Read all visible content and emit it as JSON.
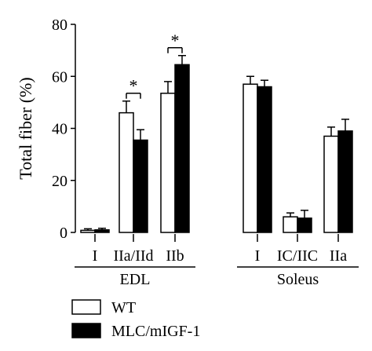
{
  "chart_data": {
    "type": "bar",
    "ylabel": "Total fiber (%)",
    "ylim": [
      0,
      80
    ],
    "yticks": [
      0,
      20,
      40,
      60,
      80
    ],
    "categories": [
      "I",
      "IIa/IId",
      "IIb",
      "I",
      "IC/IIC",
      "IIa"
    ],
    "groups": [
      {
        "label": "EDL",
        "categories": [
          "I",
          "IIa/IId",
          "IIb"
        ]
      },
      {
        "label": "Soleus",
        "categories": [
          "I",
          "IC/IIC",
          "IIa"
        ]
      }
    ],
    "series": [
      {
        "name": "WT",
        "color": "#ffffff",
        "values": [
          0.8,
          46,
          53.5,
          57,
          6,
          37
        ],
        "errors": [
          0.6,
          4.5,
          4.5,
          3,
          1.5,
          3.5
        ]
      },
      {
        "name": "MLC/mIGF-1",
        "color": "#000000",
        "values": [
          1,
          35.5,
          64.5,
          56,
          5.5,
          39
        ],
        "errors": [
          0.6,
          4,
          3.5,
          2.5,
          3,
          4.5
        ]
      }
    ],
    "annotations": [
      {
        "category_index": 1,
        "text": "*"
      },
      {
        "category_index": 2,
        "text": "*"
      }
    ],
    "grid": false,
    "legend_position": "bottom-left"
  }
}
